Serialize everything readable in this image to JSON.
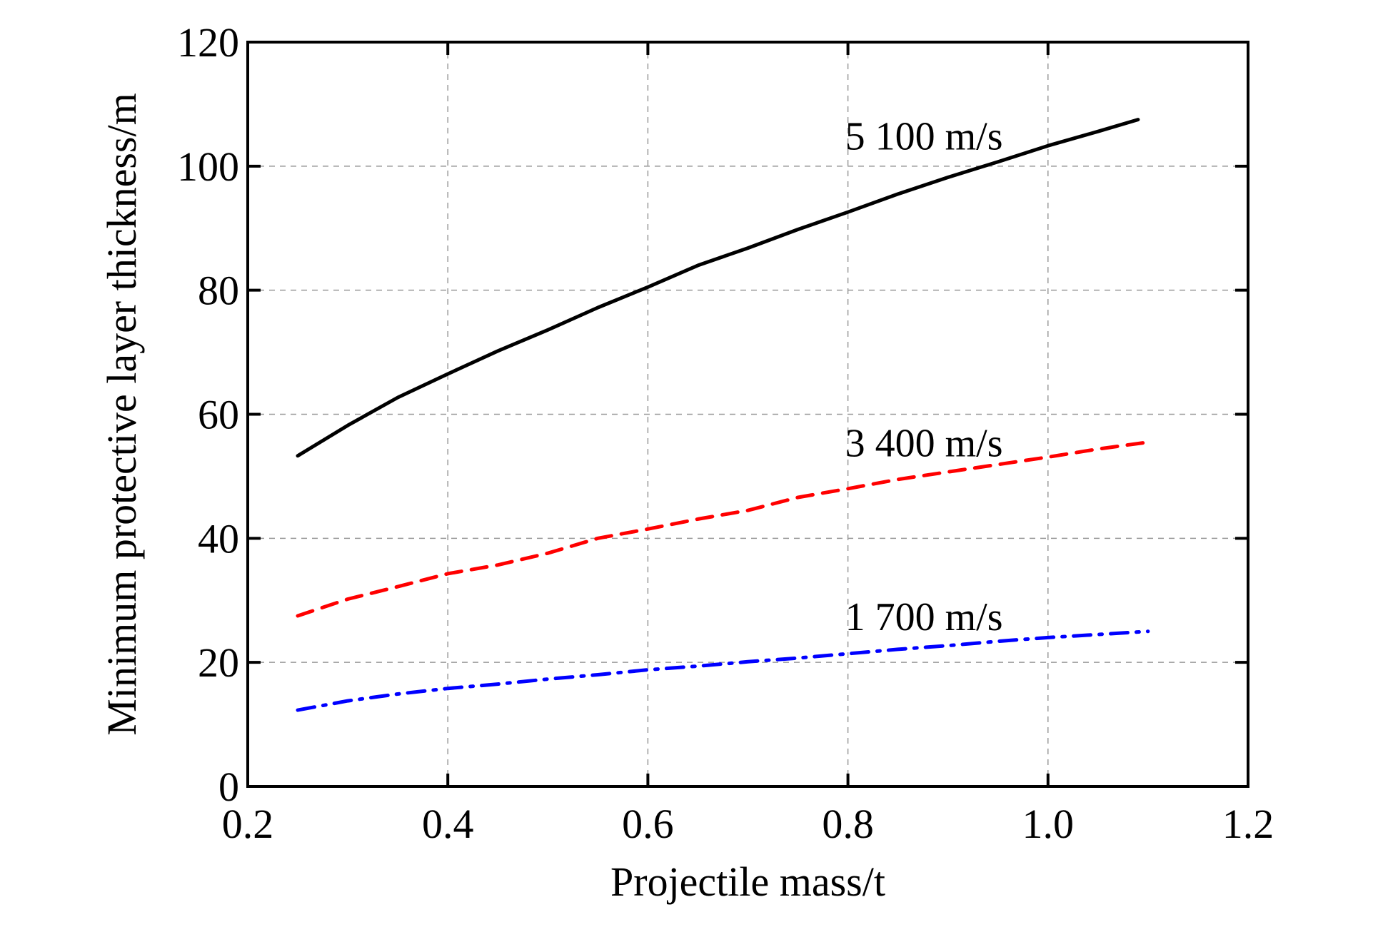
{
  "chart_data": {
    "type": "line",
    "title": "",
    "xlabel": "Projectile mass/t",
    "ylabel": "Minimum protective layer thickness/m",
    "xlim": [
      0.2,
      1.2
    ],
    "ylim": [
      0,
      120
    ],
    "xticks": [
      0.2,
      0.4,
      0.6,
      0.8,
      1.0,
      1.2
    ],
    "xtick_labels": [
      "0.2",
      "0.4",
      "0.6",
      "0.8",
      "1.0",
      "1.2"
    ],
    "yticks": [
      0,
      20,
      40,
      60,
      80,
      100,
      120
    ],
    "ytick_labels": [
      "0",
      "20",
      "40",
      "60",
      "80",
      "100",
      "120"
    ],
    "grid": true,
    "legend": "none (inline annotations)",
    "series": [
      {
        "name": "5 100 m/s",
        "color": "#000000",
        "style": "solid",
        "x": [
          0.25,
          0.3,
          0.35,
          0.4,
          0.45,
          0.5,
          0.55,
          0.6,
          0.65,
          0.7,
          0.75,
          0.8,
          0.85,
          0.9,
          0.95,
          1.0,
          1.05,
          1.09
        ],
        "y": [
          53.3,
          58.2,
          62.7,
          66.5,
          70.2,
          73.6,
          77.2,
          80.5,
          84.0,
          86.8,
          89.8,
          92.6,
          95.5,
          98.2,
          100.7,
          103.3,
          105.6,
          107.5
        ],
        "annotation": {
          "text": "5 100 m/s",
          "x": 0.8,
          "y": 105
        }
      },
      {
        "name": "3 400 m/s",
        "color": "#ff0000",
        "style": "dashed",
        "x": [
          0.25,
          0.3,
          0.35,
          0.4,
          0.45,
          0.5,
          0.55,
          0.6,
          0.65,
          0.7,
          0.75,
          0.8,
          0.85,
          0.9,
          0.95,
          1.0,
          1.05,
          1.1
        ],
        "y": [
          27.5,
          30.2,
          32.2,
          34.3,
          35.7,
          37.6,
          40.0,
          41.5,
          43.1,
          44.5,
          46.6,
          48.0,
          49.5,
          50.7,
          51.9,
          53.1,
          54.4,
          55.5
        ],
        "annotation": {
          "text": "3 400 m/s",
          "x": 0.8,
          "y": 55.5
        }
      },
      {
        "name": "1 700 m/s",
        "color": "#0000ff",
        "style": "dashdot",
        "x": [
          0.25,
          0.3,
          0.35,
          0.4,
          0.45,
          0.5,
          0.55,
          0.6,
          0.65,
          0.7,
          0.75,
          0.8,
          0.85,
          0.9,
          0.95,
          1.0,
          1.05,
          1.1
        ],
        "y": [
          12.3,
          13.8,
          14.9,
          15.8,
          16.5,
          17.3,
          18.0,
          18.8,
          19.4,
          20.1,
          20.7,
          21.4,
          22.1,
          22.7,
          23.4,
          24.0,
          24.5,
          25.0
        ],
        "annotation": {
          "text": "1 700 m/s",
          "x": 0.8,
          "y": 27.5
        }
      }
    ]
  }
}
